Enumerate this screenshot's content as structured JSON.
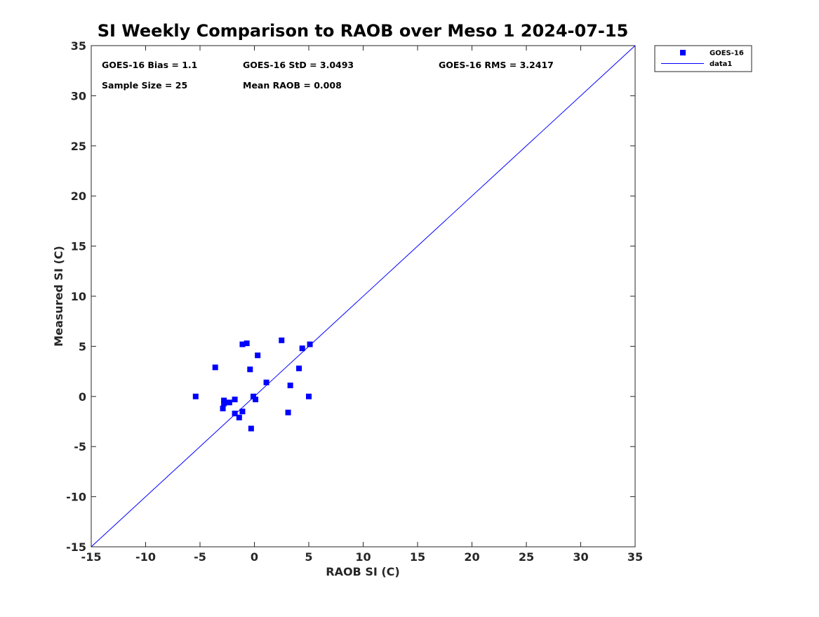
{
  "chart_data": {
    "type": "scatter",
    "title": "SI Weekly Comparison to RAOB over Meso 1 2024-07-15",
    "xlabel": "RAOB SI (C)",
    "ylabel": "Measured SI (C)",
    "xlim": [
      -15,
      35
    ],
    "ylim": [
      -15,
      35
    ],
    "xticks": [
      -15,
      -10,
      -5,
      0,
      5,
      10,
      15,
      20,
      25,
      30,
      35
    ],
    "yticks": [
      -15,
      -10,
      -5,
      0,
      5,
      10,
      15,
      20,
      25,
      30,
      35
    ],
    "grid": false,
    "legend_position": "outside-top-right",
    "colors": {
      "series": "#0000ff",
      "axis": "#262626"
    },
    "stats": {
      "bias": "GOES-16 Bias = 1.1",
      "std": "GOES-16 StD = 3.0493",
      "rms": "GOES-16 RMS = 3.2417",
      "sample_size": "Sample Size = 25",
      "mean_raob": "Mean RAOB = 0.008"
    },
    "series": [
      {
        "name": "GOES-16",
        "kind": "scatter",
        "marker": "square",
        "points": [
          {
            "x": -5.4,
            "y": 0.0
          },
          {
            "x": -3.6,
            "y": 2.9
          },
          {
            "x": -2.9,
            "y": -1.2
          },
          {
            "x": -2.8,
            "y": -0.4
          },
          {
            "x": -2.8,
            "y": -0.7
          },
          {
            "x": -2.3,
            "y": -0.6
          },
          {
            "x": -1.8,
            "y": -0.3
          },
          {
            "x": -1.8,
            "y": -1.7
          },
          {
            "x": -1.4,
            "y": -2.1
          },
          {
            "x": -1.1,
            "y": 5.2
          },
          {
            "x": -1.1,
            "y": -1.5
          },
          {
            "x": -0.7,
            "y": 5.3
          },
          {
            "x": -0.4,
            "y": 2.7
          },
          {
            "x": -0.3,
            "y": -3.2
          },
          {
            "x": -0.1,
            "y": 0.0
          },
          {
            "x": 0.1,
            "y": -0.3
          },
          {
            "x": 0.3,
            "y": 4.1
          },
          {
            "x": 1.1,
            "y": 1.4
          },
          {
            "x": 2.5,
            "y": 5.6
          },
          {
            "x": 3.1,
            "y": -1.6
          },
          {
            "x": 3.3,
            "y": 1.1
          },
          {
            "x": 4.1,
            "y": 2.8
          },
          {
            "x": 4.4,
            "y": 4.8
          },
          {
            "x": 5.0,
            "y": 0.0
          },
          {
            "x": 5.1,
            "y": 5.2
          }
        ]
      },
      {
        "name": "data1",
        "kind": "line",
        "points": [
          {
            "x": -15,
            "y": -15
          },
          {
            "x": 35,
            "y": 35
          }
        ]
      }
    ]
  }
}
